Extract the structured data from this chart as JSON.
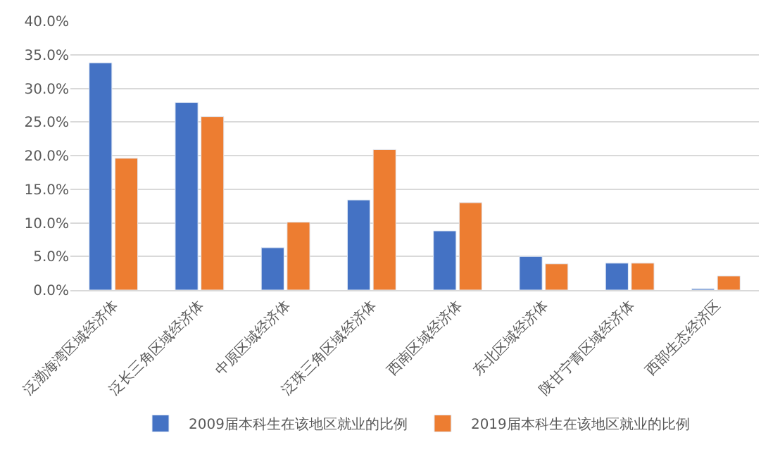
{
  "chart_data": {
    "type": "bar",
    "categories": [
      "泛渤海湾区域经济体",
      "泛长三角区域经济体",
      "中原区域经济体",
      "泛珠三角区域经济体",
      "西南区域经济体",
      "东北区域经济体",
      "陕甘宁青区域经济体",
      "西部生态经济区"
    ],
    "series": [
      {
        "name": "2009届本科生在该地区就业的比例",
        "color": "#4472c4",
        "values": [
          33.8,
          27.9,
          6.3,
          13.4,
          8.8,
          5.0,
          4.0,
          0.2
        ]
      },
      {
        "name": "2019届本科生在该地区就业的比例",
        "color": "#ed7d31",
        "values": [
          19.6,
          25.8,
          10.1,
          20.9,
          13.0,
          3.9,
          4.0,
          2.1
        ]
      }
    ],
    "ylim": [
      0,
      40
    ],
    "yticks": [
      {
        "value": 0,
        "label": "0.0%"
      },
      {
        "value": 5,
        "label": "5.0%"
      },
      {
        "value": 10,
        "label": "10.0%"
      },
      {
        "value": 15,
        "label": "15.0%"
      },
      {
        "value": 20,
        "label": "20.0%"
      },
      {
        "value": 25,
        "label": "25.0%"
      },
      {
        "value": 30,
        "label": "30.0%"
      },
      {
        "value": 35,
        "label": "35.0%"
      },
      {
        "value": 40,
        "label": "40.0%"
      }
    ],
    "grid": "y",
    "legend": "bottom"
  }
}
